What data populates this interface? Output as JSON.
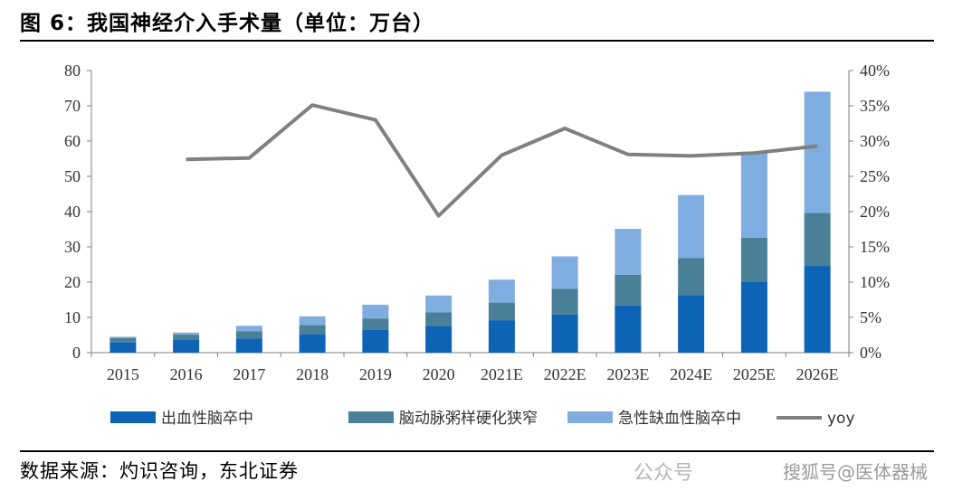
{
  "title": "图 6：我国神经介入手术量（单位：万台）",
  "source": "数据来源：灼识咨询，东北证券",
  "watermark": "搜狐号@医体器械",
  "watermark_secondary": "公众号",
  "colors": {
    "series1": "#0d63b5",
    "series2": "#4a7f98",
    "series3": "#7fade0",
    "line": "#808080"
  },
  "chart_data": {
    "type": "bar",
    "stacked": true,
    "title": "图 6：我国神经介入手术量（单位：万台）",
    "categories": [
      "2015",
      "2016",
      "2017",
      "2018",
      "2019",
      "2020",
      "2021E",
      "2022E",
      "2023E",
      "2024E",
      "2025E",
      "2026E"
    ],
    "series": [
      {
        "name": "出血性脑卒中",
        "values": [
          2.9,
          3.6,
          4.0,
          5.3,
          6.5,
          7.6,
          9.2,
          10.8,
          13.4,
          16.3,
          20.0,
          24.6
        ]
      },
      {
        "name": "脑动脉粥样硬化狭窄",
        "values": [
          1.2,
          1.5,
          2.1,
          2.5,
          3.2,
          3.8,
          5.0,
          7.3,
          8.7,
          10.5,
          12.6,
          15.0
        ]
      },
      {
        "name": "急性缺血性脑卒中",
        "values": [
          0.4,
          0.6,
          1.5,
          2.5,
          3.9,
          4.8,
          6.5,
          9.2,
          13.0,
          17.9,
          24.4,
          34.4
        ]
      }
    ],
    "line_series": {
      "name": "yoy",
      "axis": "right",
      "values": [
        null,
        0.274,
        0.276,
        0.351,
        0.33,
        0.194,
        0.28,
        0.318,
        0.281,
        0.279,
        0.283,
        0.293
      ]
    },
    "y_left": {
      "min": 0,
      "max": 80,
      "ticks": [
        "0",
        "10",
        "20",
        "30",
        "40",
        "50",
        "60",
        "70",
        "80"
      ]
    },
    "y_right": {
      "min": 0,
      "max": 0.4,
      "ticks": [
        "0%",
        "5%",
        "10%",
        "15%",
        "20%",
        "25%",
        "30%",
        "35%",
        "40%"
      ]
    },
    "grid": false,
    "legend_position": "bottom"
  }
}
